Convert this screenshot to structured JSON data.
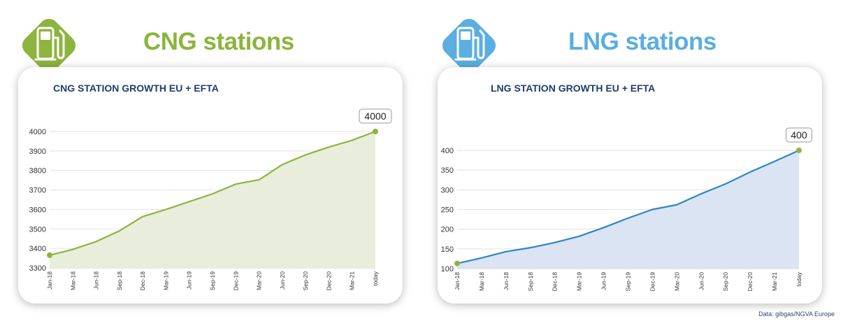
{
  "colors": {
    "cng": "#8db43e",
    "lng": "#5aaee0",
    "cng_line": "#8db43e",
    "lng_line": "#2e86c1",
    "cng_fill": "#e8eedb",
    "lng_fill": "#dbe4f2",
    "title_text": "#1f3d6d"
  },
  "panels": [
    {
      "badge_icon": "fuel-pump-icon",
      "heading": "CNG stations",
      "card_title": "CNG STATION GROWTH EU + EFTA"
    },
    {
      "badge_icon": "fuel-pump-icon",
      "heading": "LNG stations",
      "card_title": "LNG STATION GROWTH EU + EFTA"
    }
  ],
  "source_note": "Data: gibgas/NGVA Europe",
  "chart_data": [
    {
      "type": "area",
      "title": "CNG STATION GROWTH EU + EFTA",
      "xlabel": "",
      "ylabel": "",
      "categories": [
        "Jan-18",
        "Mar-18",
        "Jun-18",
        "Sep-18",
        "Dec-18",
        "Mar-19",
        "Jun-19",
        "Sep-19",
        "Dec-19",
        "Mar-20",
        "Jun-20",
        "Sep-20",
        "Dec-20",
        "Mar-21",
        "today"
      ],
      "series": [
        {
          "values": [
            3365,
            3395,
            3435,
            3490,
            3563,
            3600,
            3640,
            3680,
            3730,
            3752,
            3830,
            3880,
            3920,
            3955,
            4000
          ]
        }
      ],
      "ylim": [
        3300,
        4000
      ],
      "yticks": [
        3300,
        3400,
        3500,
        3600,
        3700,
        3800,
        3900,
        4000
      ],
      "end_label": "4000",
      "grid": true,
      "legend": "none"
    },
    {
      "type": "area",
      "title": "LNG STATION GROWTH EU + EFTA",
      "xlabel": "",
      "ylabel": "",
      "categories": [
        "Jan-18",
        "Mar-18",
        "Jun-18",
        "Sep-18",
        "Dec-18",
        "Mar-19",
        "Jun-19",
        "Sep-19",
        "Dec-19",
        "Mar-20",
        "Jun-20",
        "Sep-20",
        "Dec-20",
        "Mar-21",
        "today"
      ],
      "series": [
        {
          "values": [
            113,
            127,
            143,
            153,
            166,
            182,
            204,
            228,
            250,
            262,
            290,
            315,
            345,
            372,
            400
          ]
        }
      ],
      "ylim": [
        100,
        400
      ],
      "yticks": [
        100,
        150,
        200,
        250,
        300,
        350,
        400
      ],
      "end_label": "400",
      "grid": true,
      "legend": "none"
    }
  ]
}
